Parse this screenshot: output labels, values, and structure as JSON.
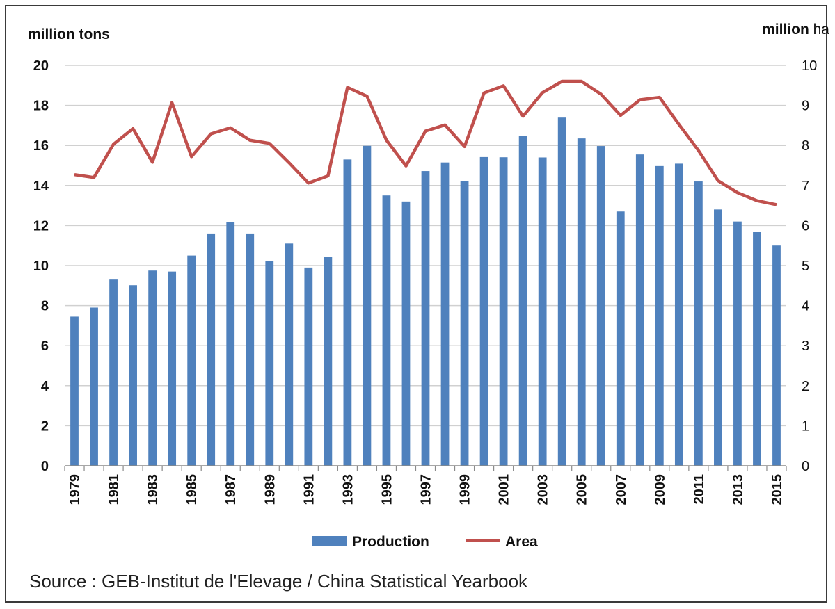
{
  "chart_data": {
    "type": "bar",
    "title": "",
    "x": [
      1979,
      1980,
      1981,
      1982,
      1983,
      1984,
      1985,
      1986,
      1987,
      1988,
      1989,
      1990,
      1991,
      1992,
      1993,
      1994,
      1995,
      1996,
      1997,
      1998,
      1999,
      2000,
      2001,
      2002,
      2003,
      2004,
      2005,
      2006,
      2007,
      2008,
      2009,
      2010,
      2011,
      2012,
      2013,
      2014,
      2015
    ],
    "x_tick_labels": [
      "1979",
      "1981",
      "1983",
      "1985",
      "1987",
      "1989",
      "1991",
      "1993",
      "1995",
      "1997",
      "1999",
      "2001",
      "2003",
      "2005",
      "2007",
      "2009",
      "2011",
      "2013",
      "2015"
    ],
    "y_left_unit": "million tons",
    "y_right_unit_bold": "million",
    "y_right_unit_rest": " ha",
    "ylim_left": [
      0,
      20
    ],
    "ylim_right": [
      0,
      10
    ],
    "y_left_ticks": [
      0,
      2,
      4,
      6,
      8,
      10,
      12,
      14,
      16,
      18,
      20
    ],
    "y_right_ticks": [
      0,
      1,
      2,
      3,
      4,
      5,
      6,
      7,
      8,
      9,
      10
    ],
    "grid": true,
    "legend_position": "bottom",
    "series": [
      {
        "name": "Production",
        "type": "bar",
        "axis": "left",
        "color": "#4f81bd",
        "values": [
          7.45,
          7.9,
          9.3,
          9.02,
          9.75,
          9.7,
          10.5,
          11.6,
          12.17,
          11.6,
          10.23,
          11.1,
          9.9,
          10.42,
          15.3,
          15.98,
          13.5,
          13.2,
          14.72,
          15.15,
          14.23,
          15.42,
          15.41,
          16.49,
          15.4,
          17.39,
          16.35,
          15.97,
          12.7,
          15.55,
          14.97,
          15.09,
          14.2,
          12.8,
          12.2,
          11.7,
          11.0
        ]
      },
      {
        "name": "Area",
        "type": "line",
        "axis": "right",
        "color": "#c0504d",
        "values": [
          7.27,
          7.2,
          8.03,
          8.42,
          7.58,
          9.07,
          7.72,
          8.29,
          8.44,
          8.13,
          8.05,
          7.57,
          7.06,
          7.24,
          9.45,
          9.23,
          8.13,
          7.49,
          8.36,
          8.51,
          7.97,
          9.31,
          9.49,
          8.73,
          9.32,
          9.6,
          9.6,
          9.28,
          8.75,
          9.14,
          9.2,
          8.52,
          7.87,
          7.12,
          6.82,
          6.62,
          6.52
        ]
      }
    ]
  },
  "source_note": "Source : GEB-Institut de l'Elevage / China Statistical Yearbook"
}
